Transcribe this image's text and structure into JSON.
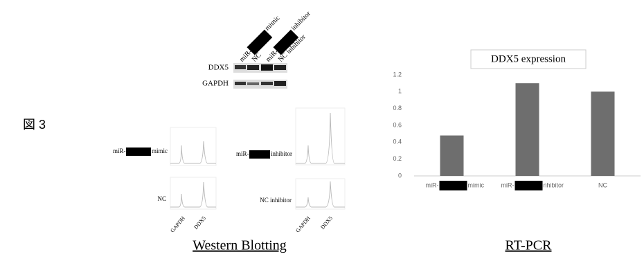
{
  "figure_label": "図 3",
  "western_blot": {
    "lanes": [
      {
        "prefix": "miR-",
        "suffix": "mimic"
      },
      {
        "text": "NC"
      },
      {
        "prefix": "miR-",
        "suffix": "inhibitor"
      },
      {
        "text": "NC inhibitor"
      }
    ],
    "rows": [
      "DDX5",
      "GAPDH"
    ],
    "panels": [
      {
        "prefix": "miR-",
        "suffix": "mimic"
      },
      {
        "prefix": "miR-",
        "suffix": "inhibitor"
      },
      {
        "text": "NC"
      },
      {
        "text": "NC inhibitor"
      }
    ],
    "x_labels": [
      "GAPDH",
      "DDX5",
      "GAPDH",
      "DDX5"
    ],
    "caption": "Western Blotting"
  },
  "chart_data": {
    "type": "bar",
    "title": "DDX5 expression",
    "categories": [
      "miR-",
      "miR-",
      "NC"
    ],
    "category_suffix": [
      "mimic",
      "nhibitor",
      null
    ],
    "values": [
      0.48,
      1.1,
      1.0
    ],
    "color": "#6e6e6e",
    "ylim": [
      0,
      1.2
    ],
    "yticks": [
      0,
      0.2,
      0.4,
      0.6,
      0.8,
      1,
      1.2
    ],
    "grid": false,
    "caption": "RT-PCR"
  }
}
